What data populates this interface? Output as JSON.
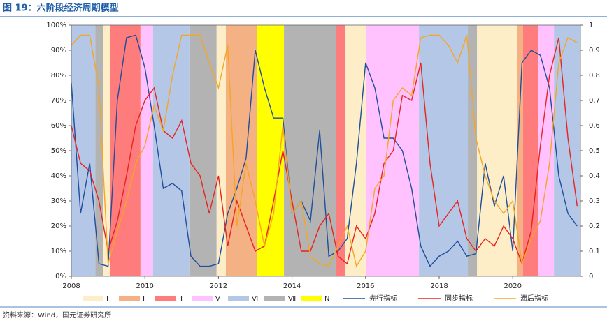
{
  "chart_data": {
    "type": "line",
    "title": "图 19：六阶段经济周期模型",
    "source": "资料来源：Wind，国元证券研究所",
    "xlim": [
      2008,
      2021.84
    ],
    "xticks": [
      2008,
      2010,
      2012,
      2014,
      2016,
      2018,
      2020
    ],
    "ylim": [
      0,
      100
    ],
    "yticks": [
      {
        "value": 0,
        "label": "0%"
      },
      {
        "value": 10,
        "label": "10%"
      },
      {
        "value": 20,
        "label": "20%"
      },
      {
        "value": 30,
        "label": "30%"
      },
      {
        "value": 40,
        "label": "40%"
      },
      {
        "value": 50,
        "label": "50%"
      },
      {
        "value": 60,
        "label": "60%"
      },
      {
        "value": 70,
        "label": "70%"
      },
      {
        "value": 80,
        "label": "80%"
      },
      {
        "value": 90,
        "label": "90%"
      },
      {
        "value": 100,
        "label": "100%"
      }
    ],
    "y2lim": [
      0,
      1
    ],
    "y2ticks": [
      0,
      0.1,
      0.2,
      0.3,
      0.4,
      0.5,
      0.6,
      0.7,
      0.8,
      0.9,
      1
    ],
    "phases": [
      {
        "name": "Ⅰ",
        "color": "#fdeec8"
      },
      {
        "name": "Ⅱ",
        "color": "#f4b183"
      },
      {
        "name": "Ⅲ",
        "color": "#ff7c7c"
      },
      {
        "name": "Ⅴ",
        "color": "#ffc2ff"
      },
      {
        "name": "Ⅵ",
        "color": "#b4c7e7"
      },
      {
        "name": "Ⅶ",
        "color": "#b3b3b3"
      },
      {
        "name": "N",
        "color": "#ffff00"
      }
    ],
    "phase_bands": [
      {
        "phase": "Ⅵ",
        "start": 2008,
        "end": 2008.65
      },
      {
        "phase": "Ⅶ",
        "start": 2008.65,
        "end": 2008.87
      },
      {
        "phase": "Ⅰ",
        "start": 2008.87,
        "end": 2009.05
      },
      {
        "phase": "Ⅲ",
        "start": 2009.05,
        "end": 2009.88
      },
      {
        "phase": "Ⅴ",
        "start": 2009.88,
        "end": 2010.22
      },
      {
        "phase": "Ⅵ",
        "start": 2010.22,
        "end": 2011.21
      },
      {
        "phase": "Ⅶ",
        "start": 2011.21,
        "end": 2011.95
      },
      {
        "phase": "Ⅰ",
        "start": 2011.95,
        "end": 2012.2
      },
      {
        "phase": "Ⅱ",
        "start": 2012.2,
        "end": 2013.04
      },
      {
        "phase": "N",
        "start": 2013.04,
        "end": 2013.78
      },
      {
        "phase": "Ⅶ",
        "start": 2013.78,
        "end": 2015.2
      },
      {
        "phase": "Ⅲ",
        "start": 2015.2,
        "end": 2015.45
      },
      {
        "phase": "Ⅰ",
        "start": 2015.45,
        "end": 2016.02
      },
      {
        "phase": "Ⅴ",
        "start": 2016.02,
        "end": 2017.45
      },
      {
        "phase": "Ⅵ",
        "start": 2017.45,
        "end": 2018.78
      },
      {
        "phase": "Ⅶ",
        "start": 2018.78,
        "end": 2019.03
      },
      {
        "phase": "Ⅰ",
        "start": 2019.03,
        "end": 2020.11
      },
      {
        "phase": "Ⅱ",
        "start": 2020.11,
        "end": 2020.28
      },
      {
        "phase": "Ⅲ",
        "start": 2020.28,
        "end": 2020.7
      },
      {
        "phase": "Ⅴ",
        "start": 2020.7,
        "end": 2021.12
      },
      {
        "phase": "Ⅵ",
        "start": 2021.12,
        "end": 2021.84
      }
    ],
    "x": [
      2008,
      2008.25,
      2008.5,
      2008.75,
      2009,
      2009.25,
      2009.5,
      2009.75,
      2010,
      2010.25,
      2010.5,
      2010.75,
      2011,
      2011.25,
      2011.5,
      2011.75,
      2012,
      2012.25,
      2012.5,
      2012.75,
      2013,
      2013.25,
      2013.5,
      2013.75,
      2014,
      2014.25,
      2014.5,
      2014.75,
      2015,
      2015.25,
      2015.5,
      2015.75,
      2016,
      2016.25,
      2016.5,
      2016.75,
      2017,
      2017.25,
      2017.5,
      2017.75,
      2018,
      2018.25,
      2018.5,
      2018.75,
      2019,
      2019.25,
      2019.5,
      2019.75,
      2020,
      2020.25,
      2020.5,
      2020.75,
      2021,
      2021.25,
      2021.5,
      2021.75
    ],
    "series": [
      {
        "name": "先行指标",
        "color": "#1f4e9c",
        "values": [
          77,
          25,
          45,
          5,
          4,
          70,
          95,
          96,
          83,
          60,
          35,
          37,
          34,
          8,
          4,
          4,
          5,
          25,
          35,
          47,
          90,
          75,
          63,
          63,
          25,
          30,
          22,
          58,
          8,
          10,
          15,
          45,
          85,
          75,
          55,
          55,
          50,
          35,
          12,
          4,
          8,
          10,
          14,
          8,
          9,
          45,
          28,
          40,
          10,
          85,
          90,
          88,
          75,
          40,
          25,
          20
        ]
      },
      {
        "name": "同步指标",
        "color": "#e8231f",
        "values": [
          60,
          45,
          42,
          30,
          10,
          22,
          40,
          60,
          70,
          75,
          58,
          55,
          62,
          45,
          40,
          25,
          40,
          12,
          30,
          20,
          10,
          12,
          30,
          50,
          30,
          10,
          10,
          20,
          25,
          8,
          5,
          20,
          15,
          25,
          45,
          50,
          72,
          70,
          85,
          45,
          20,
          25,
          30,
          15,
          10,
          15,
          12,
          20,
          15,
          5,
          18,
          52,
          80,
          95,
          55,
          28
        ]
      },
      {
        "name": "滞后指标",
        "color": "#f5a623",
        "axis": "y2",
        "values": [
          0.92,
          0.96,
          0.96,
          0.75,
          0.05,
          0.18,
          0.3,
          0.45,
          0.52,
          0.68,
          0.58,
          0.8,
          0.96,
          0.96,
          0.96,
          0.85,
          0.75,
          0.92,
          0.2,
          0.45,
          0.3,
          0.12,
          0.25,
          0.6,
          0.25,
          0.3,
          0.08,
          0.05,
          0.04,
          0.12,
          0.2,
          0.04,
          0.1,
          0.35,
          0.4,
          0.7,
          0.75,
          0.72,
          0.95,
          0.96,
          0.96,
          0.92,
          0.85,
          0.96,
          0.55,
          0.4,
          0.3,
          0.25,
          0.3,
          0.05,
          0.15,
          0.22,
          0.45,
          0.85,
          0.95,
          0.93
        ]
      }
    ]
  }
}
